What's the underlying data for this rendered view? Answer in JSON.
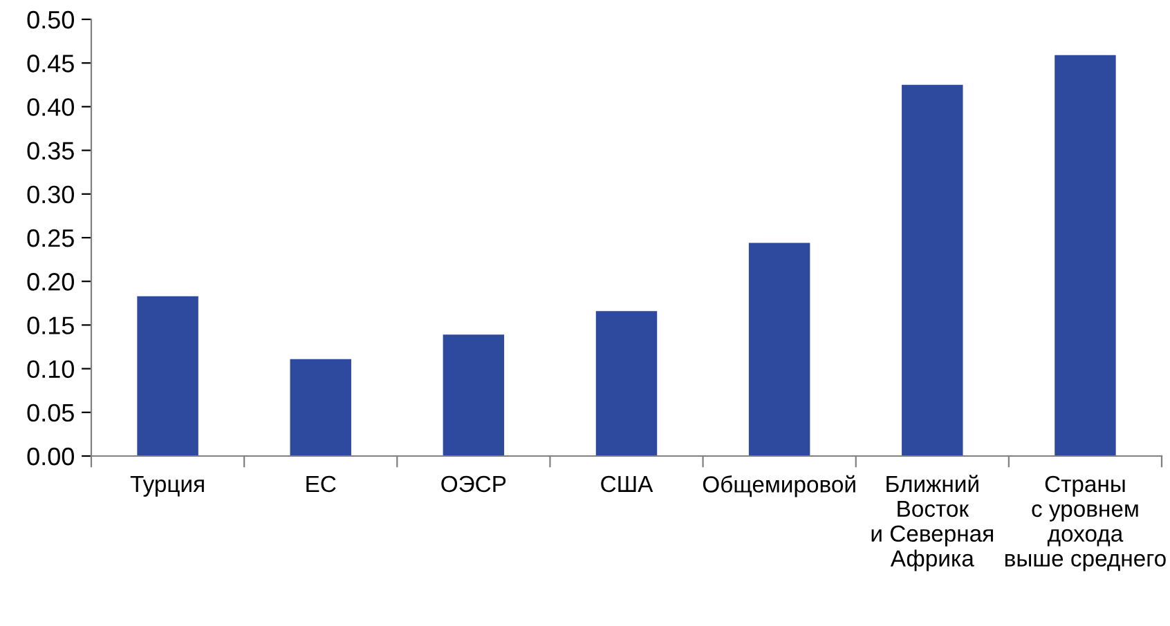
{
  "chart_data": {
    "type": "bar",
    "categories": [
      "Турция",
      "ЕС",
      "ОЭСР",
      "США",
      "Общемировой",
      "Ближний\nВосток\nи Северная\nАфрика",
      "Страны\nс уровнем\nдохода\nвыше среднего"
    ],
    "values": [
      0.183,
      0.111,
      0.139,
      0.166,
      0.244,
      0.425,
      0.459
    ],
    "color": "#2e4a9e",
    "ylim": [
      0,
      0.5
    ],
    "yticks": [
      {
        "value": 0,
        "label": "0.00"
      },
      {
        "value": 0.05,
        "label": "0.05"
      },
      {
        "value": 0.1,
        "label": "0.10"
      },
      {
        "value": 0.15,
        "label": "0.15"
      },
      {
        "value": 0.2,
        "label": "0.20"
      },
      {
        "value": 0.25,
        "label": "0.25"
      },
      {
        "value": 0.3,
        "label": "0.30"
      },
      {
        "value": 0.35,
        "label": "0.35"
      },
      {
        "value": 0.4,
        "label": "0.40"
      },
      {
        "value": 0.45,
        "label": "0.45"
      },
      {
        "value": 0.5,
        "label": "0.50"
      }
    ],
    "grid": false
  }
}
